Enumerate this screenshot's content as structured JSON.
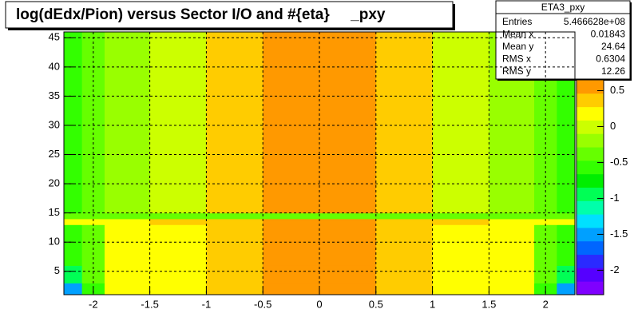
{
  "chart_data": {
    "type": "heatmap",
    "title": "log(dEdx/Pion) versus Sector I/O and #{eta}     _pxy",
    "x_edges": [
      -2.26,
      -2.1,
      -1.9,
      -1.5,
      -1.0,
      -0.5,
      0.5,
      1.0,
      1.5,
      1.9,
      2.1,
      2.26
    ],
    "y_edges": [
      1,
      3,
      6,
      13,
      14,
      15,
      46
    ],
    "z": [
      [
        -1.5,
        -0.5,
        0.1,
        0.25,
        0.4,
        0.6,
        0.4,
        0.25,
        0.1,
        -0.5,
        -1.5
      ],
      [
        -1.0,
        -0.4,
        0.1,
        0.25,
        0.4,
        0.6,
        0.4,
        0.25,
        0.1,
        -0.4,
        -1.0
      ],
      [
        -0.6,
        -0.3,
        0.1,
        0.25,
        0.4,
        0.6,
        0.4,
        0.25,
        0.1,
        -0.3,
        -0.6
      ],
      [
        0.1,
        0.2,
        0.25,
        0.3,
        0.35,
        0.5,
        0.35,
        0.3,
        0.25,
        0.2,
        0.1
      ],
      [
        -0.4,
        -0.4,
        -0.4,
        -0.4,
        -0.4,
        -0.4,
        -0.4,
        -0.4,
        -0.4,
        -0.4,
        -0.4
      ],
      [
        -0.5,
        -0.4,
        -0.2,
        0.05,
        0.35,
        0.6,
        0.35,
        0.05,
        -0.2,
        -0.4,
        -0.5
      ]
    ],
    "xlim": [
      -2.26,
      2.26
    ],
    "ylim": [
      1,
      46
    ],
    "zlim": [
      -2.34,
      0.65
    ],
    "xticks": [
      -2,
      -1.5,
      -1,
      -0.5,
      0,
      0.5,
      1,
      1.5,
      2
    ],
    "yticks": [
      5,
      10,
      15,
      20,
      25,
      30,
      35,
      40,
      45
    ],
    "zticks": [
      -2,
      -1.5,
      -1,
      -0.5,
      0,
      0.5
    ],
    "grid": true,
    "palette": [
      "#7f00ff",
      "#5500ff",
      "#2a2aff",
      "#0066ff",
      "#00a0ff",
      "#00e0ff",
      "#00ffaa",
      "#00ff55",
      "#00ee00",
      "#33ff00",
      "#66ff00",
      "#99ff00",
      "#ccff00",
      "#ffff00",
      "#ffcc00",
      "#ff9900"
    ],
    "stats": {
      "name": "ETA3_pxy",
      "rows": [
        {
          "label": "Entries",
          "value": "5.466628e+08"
        },
        {
          "label": "Mean x",
          "value": "0.01843"
        },
        {
          "label": "Mean y",
          "value": "24.64"
        },
        {
          "label": "RMS x",
          "value": "0.6304"
        },
        {
          "label": "RMS y",
          "value": "12.26"
        }
      ]
    }
  }
}
